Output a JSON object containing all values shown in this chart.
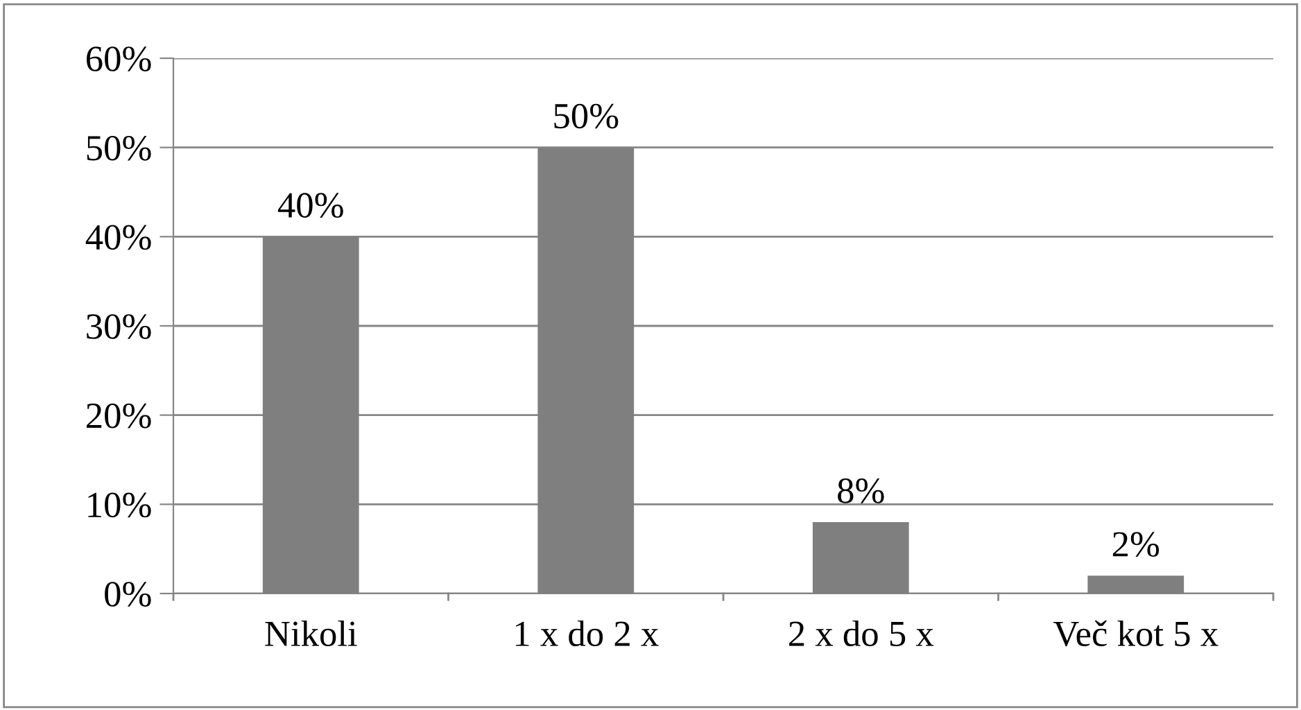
{
  "chart_data": {
    "type": "bar",
    "categories": [
      "Nikoli",
      "1 x do 2 x",
      "2 x do 5 x",
      "Več kot 5 x"
    ],
    "values": [
      40,
      50,
      8,
      2
    ],
    "value_labels": [
      "40%",
      "50%",
      "8%",
      "2%"
    ],
    "color": "#7f7f7f",
    "ylim": [
      0,
      60
    ],
    "yticks": [
      {
        "value": 0,
        "label": "0%"
      },
      {
        "value": 10,
        "label": "10%"
      },
      {
        "value": 20,
        "label": "20%"
      },
      {
        "value": 30,
        "label": "30%"
      },
      {
        "value": 40,
        "label": "40%"
      },
      {
        "value": 50,
        "label": "50%"
      },
      {
        "value": 60,
        "label": "60%"
      }
    ],
    "grid": "y"
  }
}
